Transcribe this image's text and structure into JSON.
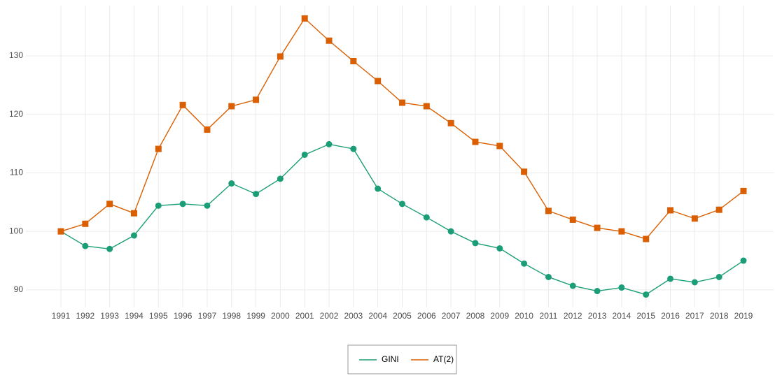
{
  "chart_data": {
    "type": "line",
    "categories": [
      "1991",
      "1992",
      "1993",
      "1994",
      "1995",
      "1996",
      "1997",
      "1998",
      "1999",
      "2000",
      "2001",
      "2002",
      "2003",
      "2004",
      "2005",
      "2006",
      "2007",
      "2008",
      "2009",
      "2010",
      "2011",
      "2012",
      "2013",
      "2014",
      "2015",
      "2016",
      "2017",
      "2018",
      "2019"
    ],
    "series": [
      {
        "name": "GINI",
        "color": "#1b9e77",
        "marker": "circle",
        "values": [
          100,
          97.5,
          97.0,
          99.3,
          104.4,
          104.7,
          104.4,
          108.2,
          106.4,
          109.0,
          113.1,
          114.9,
          114.1,
          107.3,
          104.7,
          102.4,
          100.0,
          98.0,
          97.1,
          94.5,
          92.2,
          90.7,
          89.8,
          90.4,
          89.2,
          91.9,
          91.3,
          92.2,
          95.0
        ]
      },
      {
        "name": "AT(2)",
        "color": "#d95f02",
        "marker": "square",
        "values": [
          100,
          101.3,
          104.7,
          103.1,
          114.1,
          121.6,
          117.4,
          121.4,
          122.5,
          129.9,
          136.4,
          132.6,
          129.1,
          125.7,
          122.0,
          121.4,
          118.5,
          115.3,
          114.6,
          110.2,
          103.5,
          102.0,
          100.6,
          100.0,
          98.7,
          103.6,
          102.2,
          103.7,
          106.9
        ]
      }
    ],
    "ylim": [
      87,
      138.6
    ],
    "yticks": [
      90,
      100,
      110,
      120,
      130
    ],
    "grid": true,
    "legend": "bottom"
  }
}
